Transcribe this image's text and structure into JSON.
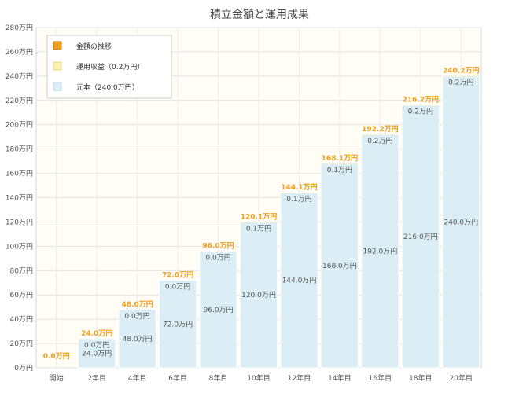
{
  "chart_data": {
    "type": "bar",
    "title": "積立金額と運用成果",
    "xlabel": "",
    "ylabel": "",
    "ylim": [
      0,
      280
    ],
    "ytick_step": 20,
    "ytick_suffix": "万円",
    "grid": true,
    "stacked": true,
    "legend_position": "top-left",
    "categories": [
      "開始",
      "2年目",
      "4年目",
      "6年目",
      "8年目",
      "10年目",
      "12年目",
      "14年目",
      "16年目",
      "18年目",
      "20年目"
    ],
    "series": [
      {
        "name": "元本（240.0万円）",
        "color": "#dbeef5",
        "values": [
          0,
          24.0,
          48.0,
          72.0,
          96.0,
          120.0,
          144.0,
          168.0,
          192.0,
          216.0,
          240.0
        ],
        "labels": [
          "",
          "24.0万円",
          "48.0万円",
          "72.0万円",
          "96.0万円",
          "120.0万円",
          "144.0万円",
          "168.0万円",
          "192.0万円",
          "216.0万円",
          "240.0万円"
        ]
      },
      {
        "name": "運用収益（0.2万円）",
        "color": "#fff0b0",
        "values": [
          0,
          0.0,
          0.0,
          0.0,
          0.0,
          0.1,
          0.1,
          0.1,
          0.2,
          0.2,
          0.2
        ],
        "labels": [
          "",
          "0.0万円",
          "0.0万円",
          "0.0万円",
          "0.0万円",
          "0.1万円",
          "0.1万円",
          "0.1万円",
          "0.2万円",
          "0.2万円",
          "0.2万円"
        ]
      }
    ],
    "total": {
      "name": "金額の推移",
      "color": "#f0a020",
      "values": [
        0.0,
        24.0,
        48.0,
        72.0,
        96.0,
        120.1,
        144.1,
        168.1,
        192.2,
        216.2,
        240.2
      ],
      "labels": [
        "0.0万円",
        "24.0万円",
        "48.0万円",
        "72.0万円",
        "96.0万円",
        "120.1万円",
        "144.1万円",
        "168.1万円",
        "192.2万円",
        "216.2万円",
        "240.2万円"
      ]
    }
  }
}
